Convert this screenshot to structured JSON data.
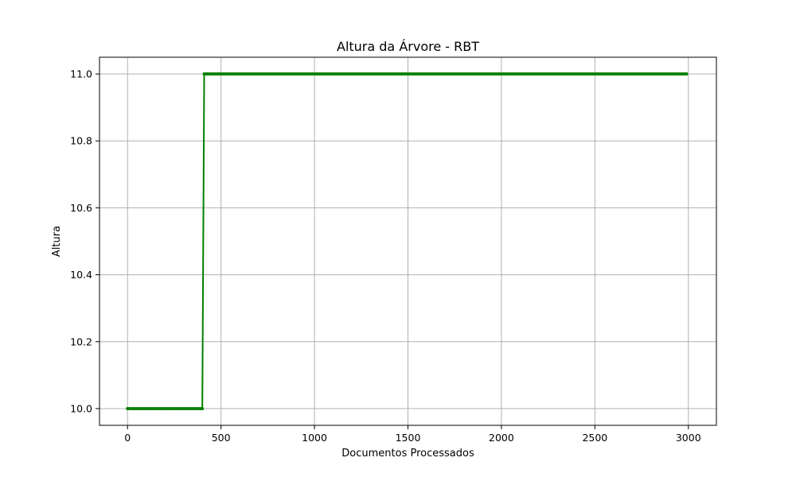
{
  "chart_data": {
    "type": "line",
    "title": "Altura da Árvore - RBT",
    "xlabel": "Documentos Processados",
    "ylabel": "Altura",
    "xlim": [
      -150,
      3150
    ],
    "ylim": [
      9.95,
      11.05
    ],
    "xticks": [
      0,
      500,
      1000,
      1500,
      2000,
      2500,
      3000
    ],
    "yticks": [
      10.0,
      10.2,
      10.4,
      10.6,
      10.8,
      11.0
    ],
    "ytick_labels": [
      "10.0",
      "10.2",
      "10.4",
      "10.6",
      "10.8",
      "11.0"
    ],
    "grid": true,
    "series": [
      {
        "color": "#008000",
        "marker": "dot",
        "segments": [
          {
            "x_start": 0,
            "x_end": 400,
            "step": 10,
            "y": 10.0
          },
          {
            "x_start": 410,
            "x_end": 2990,
            "step": 10,
            "y": 11.0
          }
        ]
      }
    ]
  }
}
